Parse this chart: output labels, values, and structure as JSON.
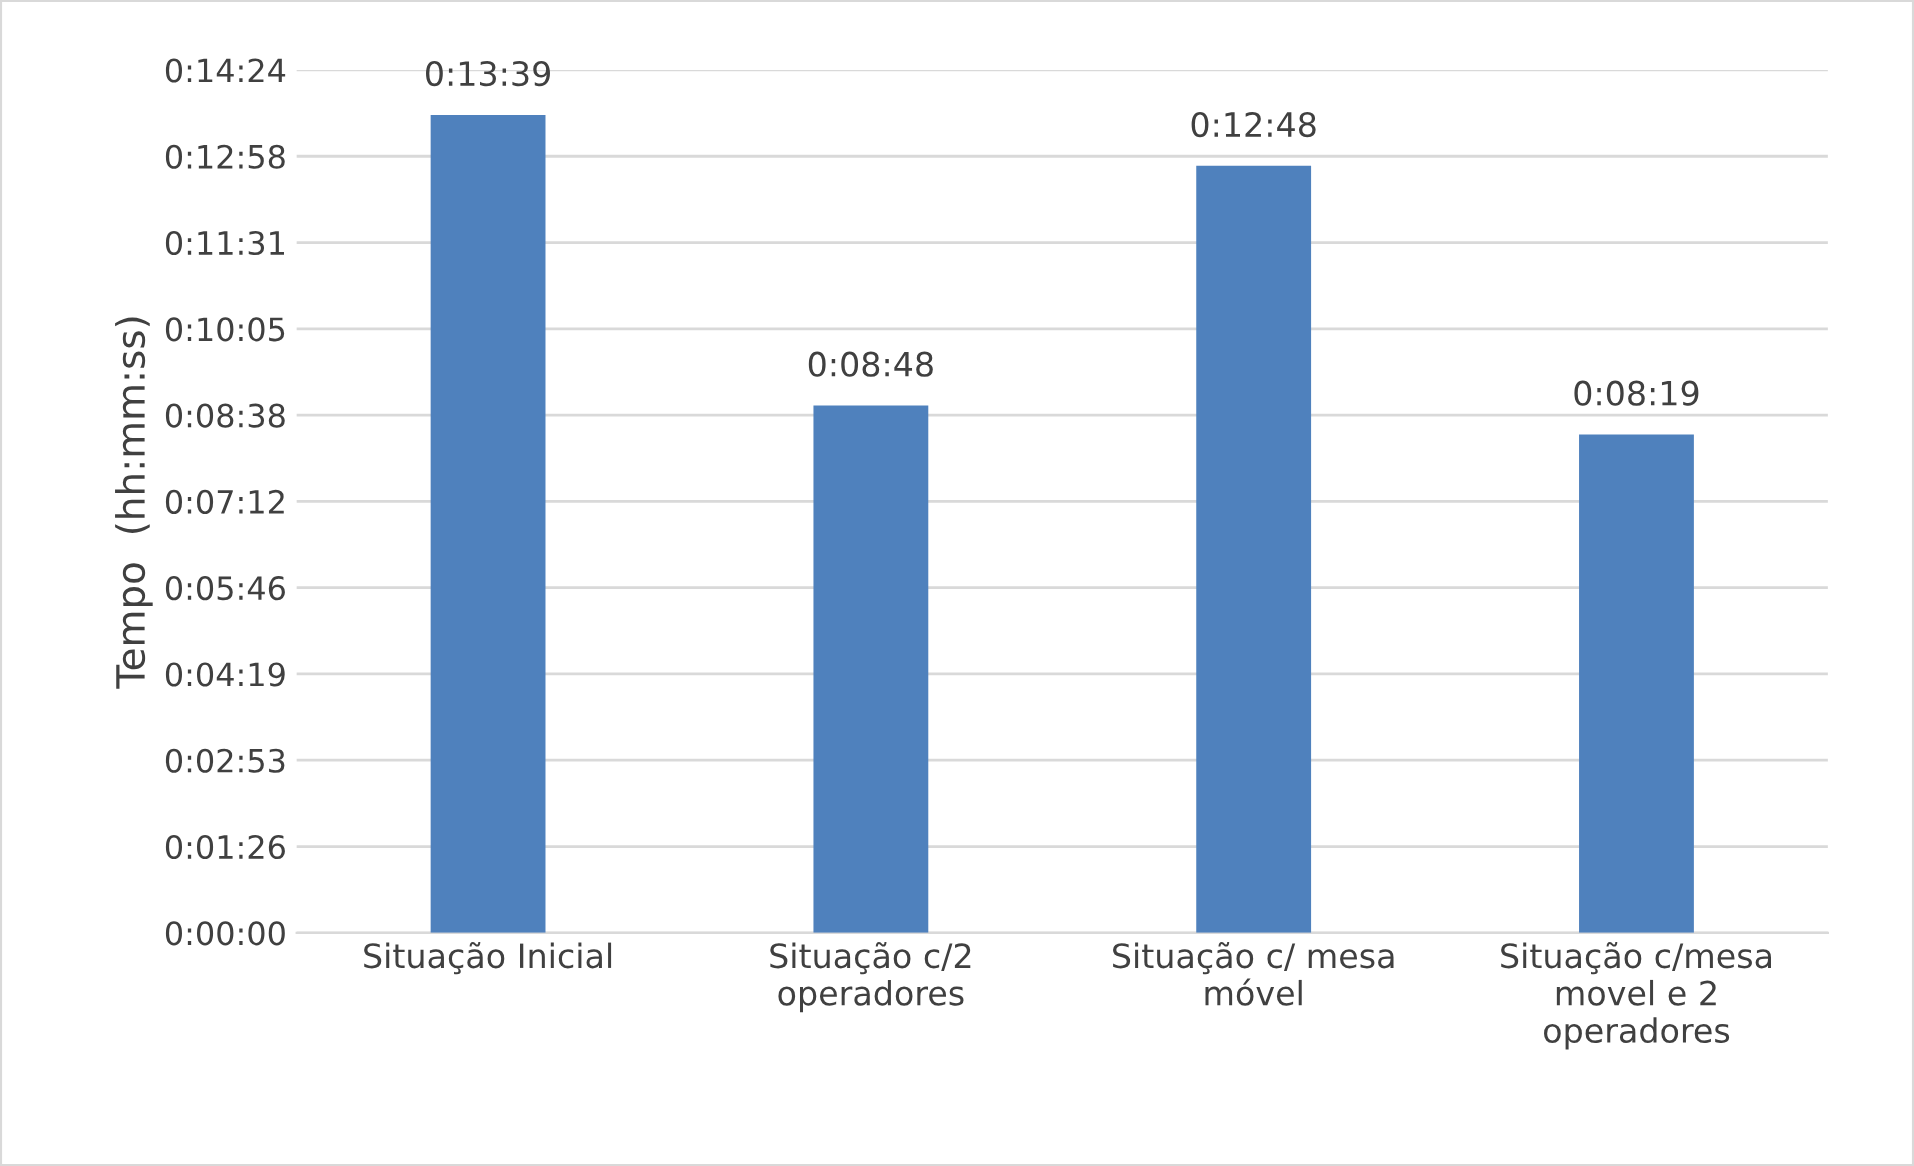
{
  "chart_data": {
    "type": "bar",
    "ylabel": "Tempo  (hh:mm:ss)",
    "categories": [
      "Situação Inicial",
      "Situação c/2 operadores",
      "Situação c/ mesa móvel",
      "Situação c/mesa movel e 2 operadores"
    ],
    "values": [
      819,
      528,
      768,
      499
    ],
    "value_labels": [
      "0:13:39",
      "0:08:48",
      "0:12:48",
      "0:08:19"
    ],
    "color": "#4f81bd",
    "ylim": [
      0,
      864
    ],
    "yticks": [
      {
        "value": 0,
        "label": "0:00:00"
      },
      {
        "value": 86.4,
        "label": "0:01:26"
      },
      {
        "value": 172.8,
        "label": "0:02:53"
      },
      {
        "value": 259.2,
        "label": "0:04:19"
      },
      {
        "value": 345.6,
        "label": "0:05:46"
      },
      {
        "value": 432,
        "label": "0:07:12"
      },
      {
        "value": 518.4,
        "label": "0:08:38"
      },
      {
        "value": 604.8,
        "label": "0:10:05"
      },
      {
        "value": 691.2,
        "label": "0:11:31"
      },
      {
        "value": 777.6,
        "label": "0:12:58"
      },
      {
        "value": 864,
        "label": "0:14:24"
      }
    ],
    "grid": "y"
  }
}
